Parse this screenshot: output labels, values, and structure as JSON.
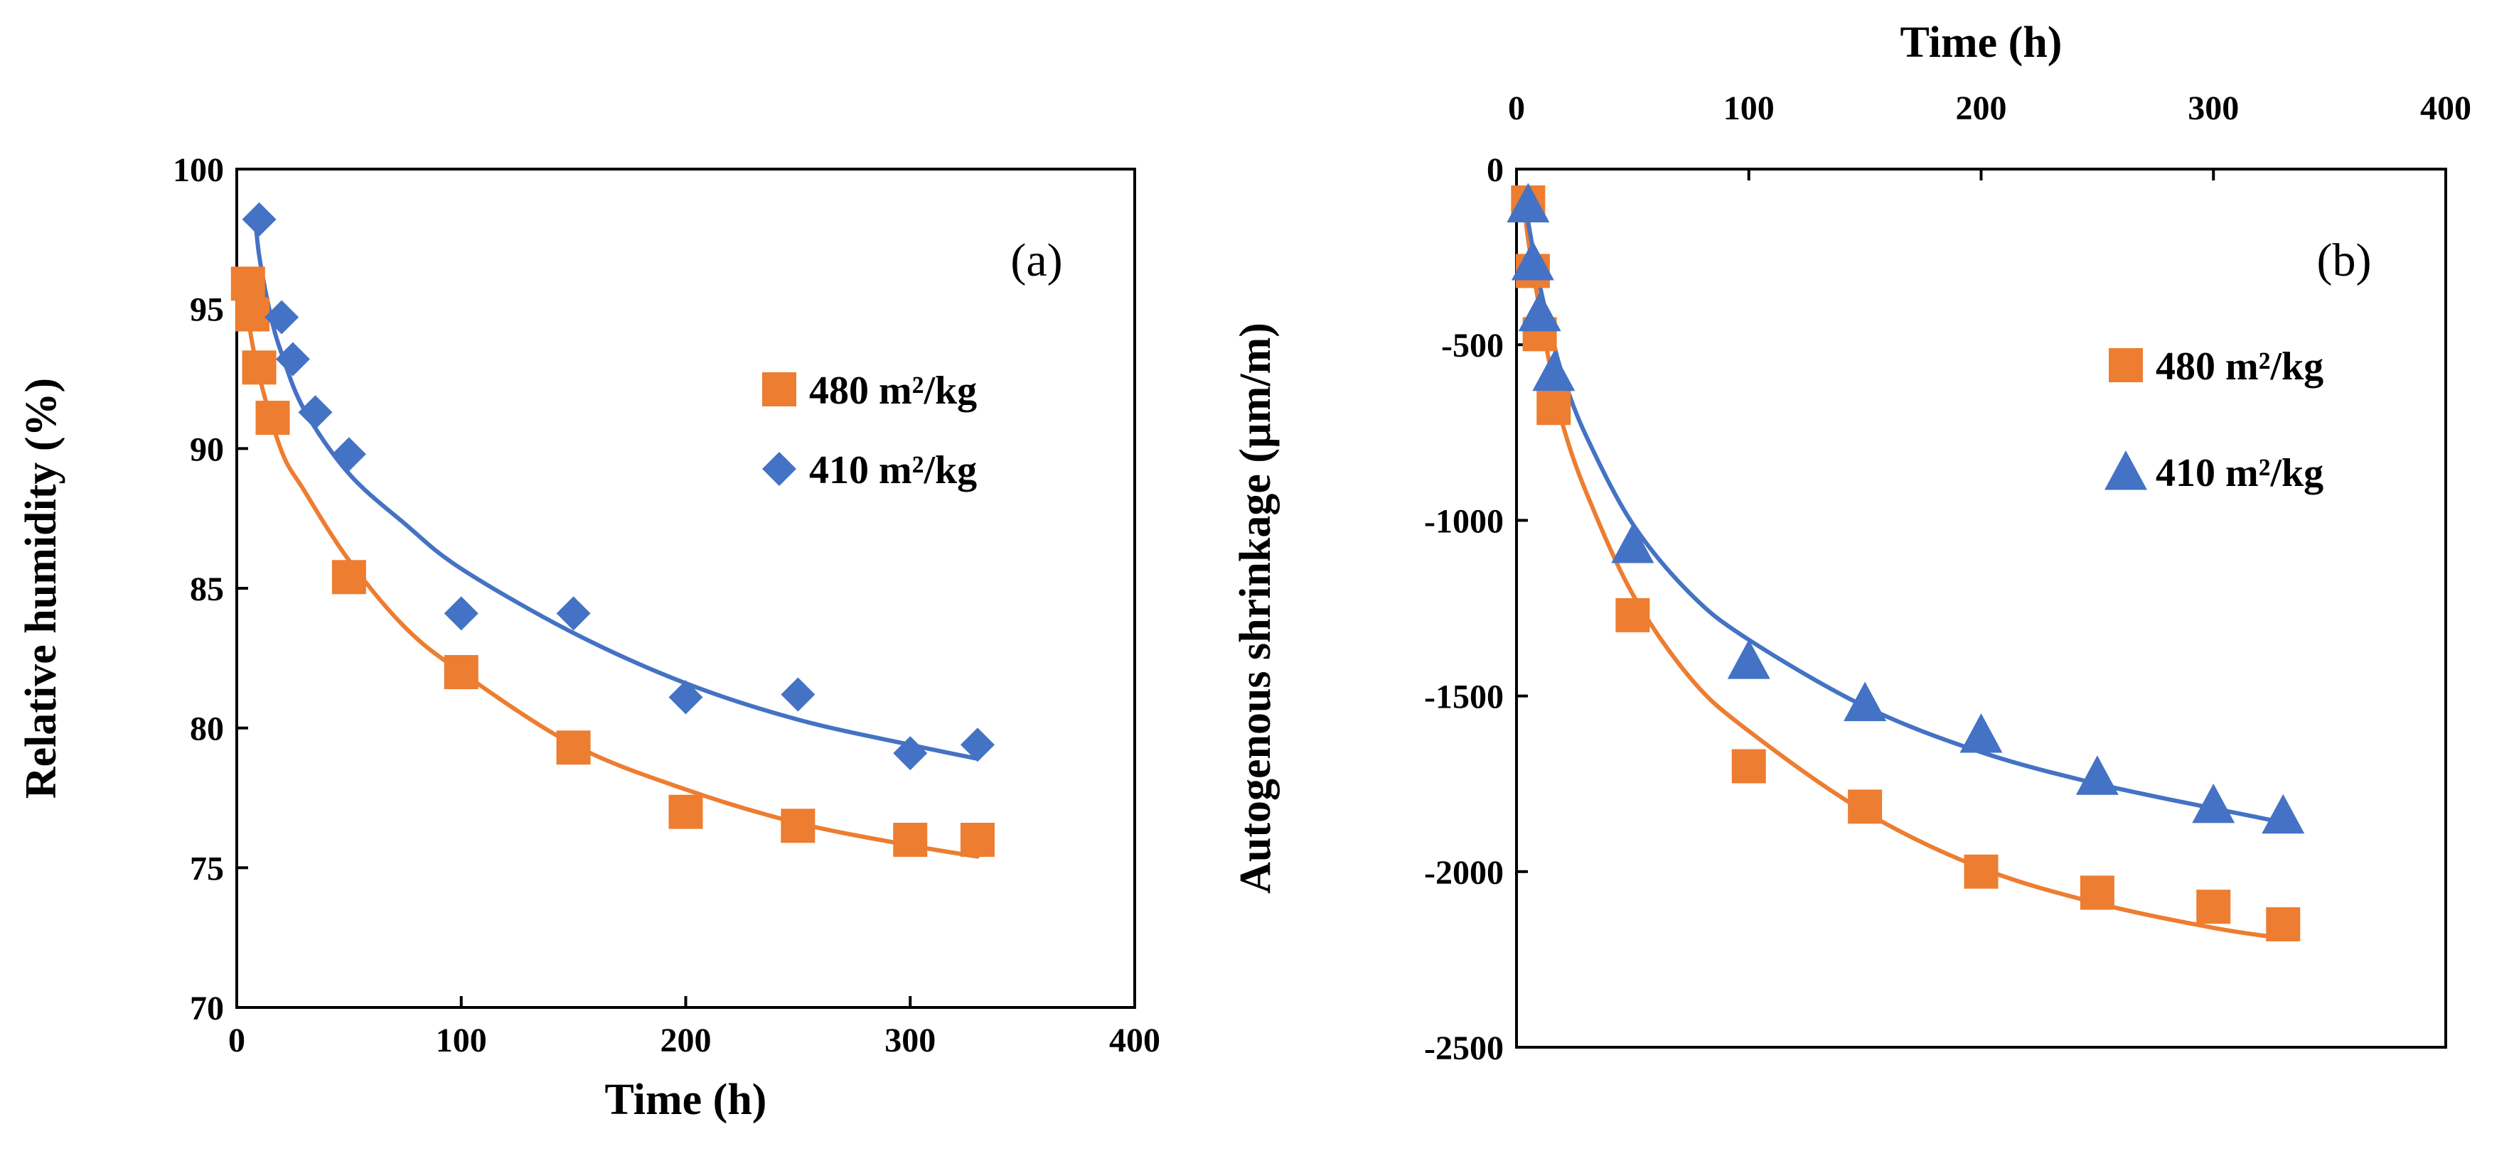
{
  "colors": {
    "orange": "#ED7D31",
    "blue": "#4472C4",
    "axis": "#000000"
  },
  "chart_data": [
    {
      "type": "scatter",
      "panel_label": "(a)",
      "title": "",
      "xlabel": "Time (h)",
      "ylabel": "Relative humidity (%)",
      "xlim": [
        0,
        400
      ],
      "ylim": [
        70,
        100
      ],
      "xticks": [
        "0",
        "100",
        "200",
        "300",
        "400"
      ],
      "yticks": [
        "70",
        "75",
        "80",
        "85",
        "90",
        "95",
        "100"
      ],
      "legend": [
        "480 m²/kg",
        "410 m²/kg"
      ],
      "series": [
        {
          "name": "480 m²/kg",
          "marker": "square",
          "color": "#ED7D31",
          "x": [
            5,
            7,
            10,
            16,
            50,
            100,
            150,
            200,
            250,
            300,
            330
          ],
          "y": [
            95.9,
            94.8,
            92.9,
            91.1,
            85.4,
            82.0,
            79.3,
            77.0,
            76.5,
            76.0,
            76.0
          ],
          "fit": {
            "x": [
              3,
              5,
              10,
              20,
              30,
              50,
              75,
              100,
              150,
              200,
              250,
              300,
              330
            ],
            "y": [
              96.2,
              94.7,
              92.6,
              89.9,
              88.5,
              86.0,
              83.6,
              82.0,
              79.4,
              77.8,
              76.6,
              75.8,
              75.4
            ]
          }
        },
        {
          "name": "410 m²/kg",
          "marker": "diamond",
          "color": "#4472C4",
          "x": [
            10,
            20,
            25,
            35,
            50,
            100,
            150,
            200,
            250,
            300,
            330
          ],
          "y": [
            98.2,
            94.7,
            93.2,
            91.3,
            89.8,
            84.1,
            84.1,
            81.1,
            81.2,
            79.1,
            79.4
          ],
          "fit": {
            "x": [
              8,
              10,
              15,
              20,
              30,
              50,
              75,
              100,
              150,
              200,
              250,
              300,
              330
            ],
            "y": [
              98.5,
              96.9,
              94.8,
              93.4,
              91.4,
              89.1,
              87.3,
              85.7,
              83.4,
              81.6,
              80.3,
              79.4,
              78.9
            ]
          }
        }
      ]
    },
    {
      "type": "scatter",
      "panel_label": "(b)",
      "title": "",
      "xlabel": "Time (h)",
      "ylabel": "Autogenous shrinkage (µm/m)",
      "xlim": [
        0,
        400
      ],
      "ylim": [
        -2500,
        0
      ],
      "xticks": [
        "0",
        "100",
        "200",
        "300",
        "400"
      ],
      "yticks": [
        "0",
        "-500",
        "-1000",
        "-1500",
        "-2000",
        "-2500"
      ],
      "legend": [
        "480 m²/kg",
        "410 m²/kg"
      ],
      "series": [
        {
          "name": "480 m²/kg",
          "marker": "square",
          "color": "#ED7D31",
          "x": [
            5,
            7,
            10,
            16,
            50,
            100,
            150,
            200,
            250,
            300,
            330
          ],
          "y": [
            -95,
            -290,
            -470,
            -680,
            -1270,
            -1700,
            -1815,
            -2000,
            -2060,
            -2100,
            -2150
          ],
          "fit": {
            "x": [
              3,
              5,
              10,
              15,
              20,
              30,
              50,
              75,
              100,
              150,
              200,
              250,
              300,
              330
            ],
            "y": [
              -80,
              -200,
              -400,
              -580,
              -730,
              -920,
              -1210,
              -1450,
              -1600,
              -1830,
              -1990,
              -2090,
              -2160,
              -2190
            ]
          }
        },
        {
          "name": "410 m²/kg",
          "marker": "triangle",
          "color": "#4472C4",
          "x": [
            5,
            7,
            10,
            16,
            50,
            100,
            150,
            200,
            250,
            300,
            330
          ],
          "y": [
            -100,
            -265,
            -410,
            -580,
            -1070,
            -1400,
            -1520,
            -1610,
            -1730,
            -1810,
            -1840
          ],
          "fit": {
            "x": [
              3,
              5,
              10,
              15,
              20,
              30,
              50,
              75,
              100,
              150,
              200,
              250,
              300,
              330
            ],
            "y": [
              -60,
              -150,
              -330,
              -470,
              -590,
              -760,
              -1010,
              -1210,
              -1340,
              -1530,
              -1660,
              -1750,
              -1820,
              -1860
            ]
          }
        }
      ]
    }
  ]
}
